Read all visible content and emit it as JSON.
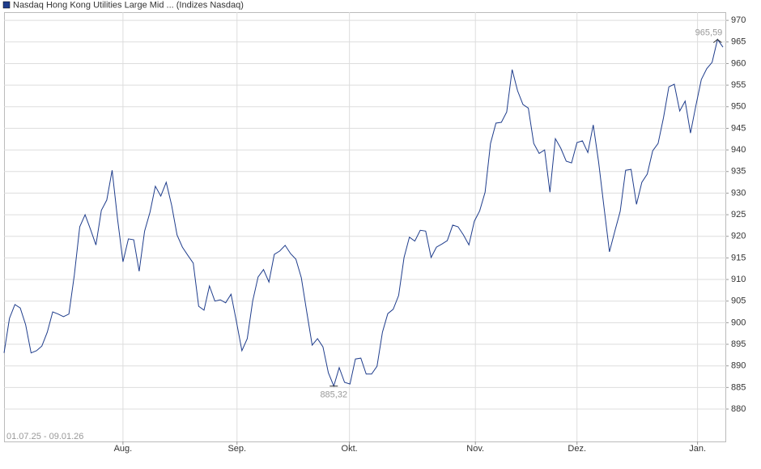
{
  "chart_data": {
    "type": "line",
    "title": "Nasdaq Hong Kong Utilities Large Mid ... (Indizes Nasdaq)",
    "subtitle": "01.07.25 - 09.01.26",
    "series": [
      {
        "name": "Nasdaq Hong Kong Utilities Large Mid ... (Indizes Nasdaq)",
        "color": "#1f3d8c",
        "values": [
          893,
          901,
          904.2,
          903.4,
          899.5,
          893,
          893.5,
          894.6,
          897.8,
          902.5,
          902,
          901.4,
          902,
          911,
          922.2,
          925,
          921.6,
          918,
          926,
          928.4,
          935.3,
          924,
          914.1,
          919.4,
          919.2,
          911.9,
          921.2,
          925.6,
          931.6,
          929.3,
          932.5,
          927.2,
          920.3,
          917.5,
          915.6,
          913.8,
          903.8,
          902.9,
          908.5,
          905,
          905.3,
          904.6,
          906.6,
          900.2,
          893.5,
          896.3,
          905,
          910.6,
          912.3,
          909.4,
          915.8,
          916.6,
          917.9,
          916,
          914.7,
          910.4,
          902.5,
          894.8,
          896.3,
          894.4,
          888.4,
          885.32,
          889.6,
          886.2,
          885.8,
          891.6,
          891.8,
          888.1,
          888.1,
          889.9,
          897.8,
          902.1,
          903.1,
          906.3,
          915.1,
          919.8,
          918.9,
          921.4,
          921.2,
          915.1,
          917.5,
          918.2,
          919,
          922.6,
          922.2,
          920.3,
          918,
          923.5,
          925.9,
          930.2,
          941.5,
          946.2,
          946.4,
          948.8,
          958.6,
          953.7,
          950.5,
          949.7,
          941.5,
          939.2,
          940,
          930.2,
          942.6,
          940.4,
          937.4,
          937,
          941.7,
          942.1,
          939.4,
          945.8,
          937.2,
          926.7,
          916.4,
          921.2,
          925.8,
          935.3,
          935.5,
          927.4,
          932.5,
          934.4,
          939.8,
          941.5,
          947.5,
          954.6,
          955.2,
          949,
          951.3,
          943.9,
          950.3,
          956.3,
          958.8,
          960.3,
          965.59,
          963.8
        ]
      }
    ],
    "annotations": [
      {
        "x": 132,
        "label": "965,59",
        "position": "above"
      },
      {
        "x": 61,
        "label": "885,32",
        "position": "below"
      }
    ],
    "xlim": [
      0,
      133.6
    ],
    "xticks": [
      {
        "value": 22,
        "label": "Aug."
      },
      {
        "value": 43.1,
        "label": "Sep."
      },
      {
        "value": 63.9,
        "label": "Okt."
      },
      {
        "value": 87.2,
        "label": "Nov."
      },
      {
        "value": 106,
        "label": "Dez."
      },
      {
        "value": 128.3,
        "label": "Jan."
      }
    ],
    "ylim": [
      872.5,
      971.9
    ],
    "yticks": [
      880,
      885,
      890,
      895,
      900,
      905,
      910,
      915,
      920,
      925,
      930,
      935,
      940,
      945,
      950,
      955,
      960,
      965,
      970
    ],
    "grid": true
  }
}
